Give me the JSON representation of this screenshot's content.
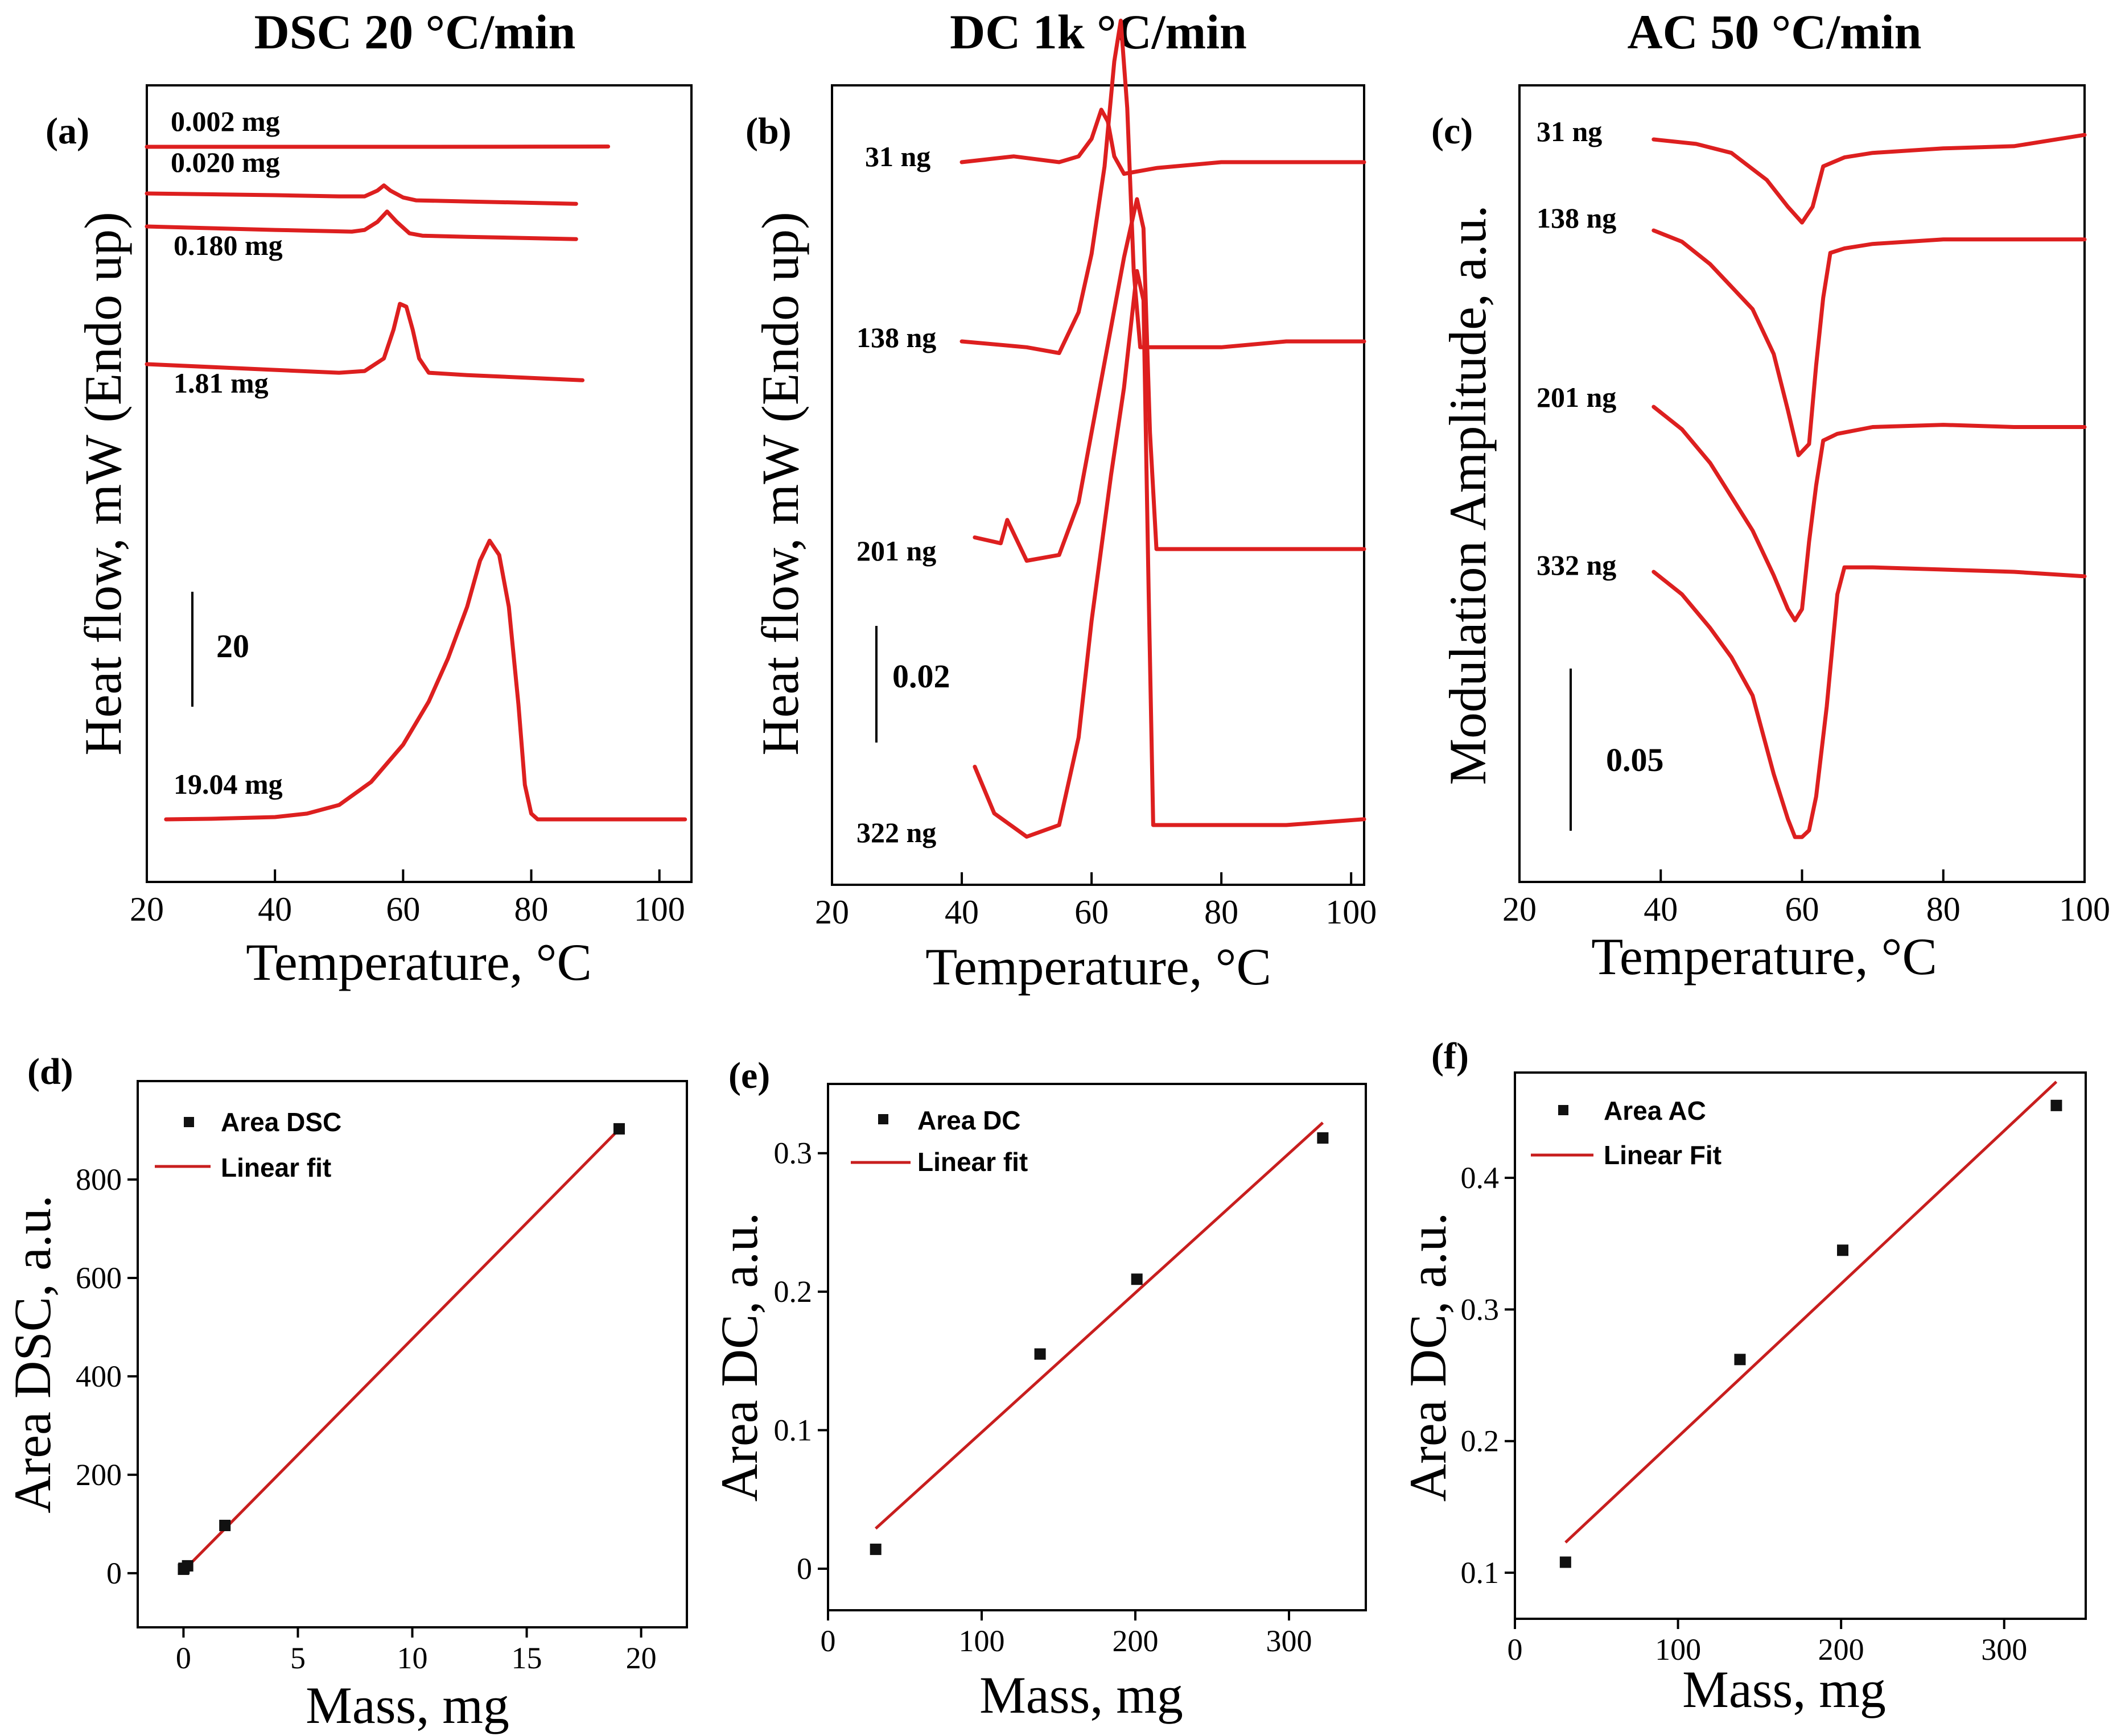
{
  "colors": {
    "trace": "#dd1f1f",
    "fit": "#c81e1e",
    "marker": "#111111"
  },
  "titles": {
    "a": "DSC 20 °C/min",
    "b": "DC 1k °C/min",
    "c": "AC 50 °C/min"
  },
  "chart_data": [
    {
      "id": "a",
      "type": "line",
      "panel_label": "(a)",
      "xlabel": "Temperature, °C",
      "ylabel": "Heat flow, mW (Endo up)",
      "xlim": [
        20,
        105
      ],
      "xticks": [
        20,
        40,
        60,
        80,
        100
      ],
      "scale_bar": "20",
      "series": [
        {
          "name": "0.002 mg",
          "x": [
            20,
            40,
            60,
            80,
            92
          ],
          "y": [
            0,
            0,
            0,
            0.02,
            0.05
          ]
        },
        {
          "name": "0.020 mg",
          "x": [
            20,
            40,
            50,
            54,
            56,
            57,
            58,
            60,
            62,
            70,
            87
          ],
          "y": [
            0,
            -0.3,
            -0.5,
            -0.5,
            0.5,
            1.4,
            0.5,
            -0.7,
            -1.2,
            -1.4,
            -1.8
          ]
        },
        {
          "name": "0.180 mg",
          "x": [
            20,
            40,
            52,
            54,
            56,
            57.5,
            59,
            61,
            63,
            70,
            87
          ],
          "y": [
            0,
            -0.6,
            -0.9,
            -0.6,
            0.8,
            2.6,
            0.8,
            -1.2,
            -1.6,
            -1.8,
            -2.2
          ]
        },
        {
          "name": "1.81 mg",
          "x": [
            20,
            40,
            50,
            54,
            57,
            58.5,
            59.5,
            60.5,
            61.5,
            62.5,
            64,
            70,
            80,
            88
          ],
          "y": [
            0,
            -1,
            -1.5,
            -1.2,
            1,
            6,
            10.5,
            10,
            6,
            1,
            -1.5,
            -1.9,
            -2.4,
            -2.8
          ]
        },
        {
          "name": "19.04 mg",
          "x": [
            23,
            30,
            40,
            45,
            50,
            55,
            60,
            64,
            67,
            70,
            72,
            73.5,
            75,
            76.5,
            78,
            79,
            80,
            81,
            90,
            104
          ],
          "y": [
            0,
            0.1,
            0.4,
            1,
            2.5,
            6.5,
            13,
            20.5,
            28,
            37,
            45,
            48.5,
            46,
            37,
            20,
            6,
            1,
            0,
            0,
            0
          ]
        }
      ]
    },
    {
      "id": "b",
      "type": "line",
      "panel_label": "(b)",
      "xlabel": "Temperature, °C",
      "ylabel": "Heat flow, mW (Endo up)",
      "xlim": [
        20,
        102
      ],
      "xticks": [
        20,
        40,
        60,
        80,
        100
      ],
      "scale_bar": "0.02",
      "series": [
        {
          "name": "31 ng",
          "x": [
            40,
            48,
            55,
            58,
            60,
            61.5,
            62.5,
            63.5,
            65,
            70,
            80,
            90,
            102
          ],
          "y": [
            0,
            0.001,
            0,
            0.001,
            0.004,
            0.009,
            0.007,
            0.001,
            -0.002,
            -0.001,
            0,
            0,
            0
          ]
        },
        {
          "name": "138 ng",
          "x": [
            40,
            50,
            55,
            58,
            60,
            62,
            63.5,
            64.5,
            65.5,
            66.5,
            67.5,
            70,
            80,
            90,
            102
          ],
          "y": [
            0,
            -0.001,
            -0.002,
            0.005,
            0.015,
            0.03,
            0.048,
            0.055,
            0.04,
            0.012,
            -0.001,
            -0.001,
            -0.001,
            0,
            0
          ]
        },
        {
          "name": "201 ng",
          "x": [
            42,
            46,
            47,
            50,
            55,
            58,
            60,
            63,
            65,
            67,
            68,
            69,
            70,
            72,
            80,
            90,
            102
          ],
          "y": [
            0.002,
            0.001,
            0.005,
            -0.002,
            -0.001,
            0.008,
            0.02,
            0.038,
            0.05,
            0.06,
            0.055,
            0.02,
            0,
            0,
            0,
            0,
            0
          ]
        },
        {
          "name": "322 ng",
          "x": [
            42,
            45,
            50,
            55,
            58,
            60,
            63,
            65,
            66,
            67,
            68,
            68.8,
            69.5,
            72,
            80,
            90,
            102
          ],
          "y": [
            0.01,
            0.002,
            -0.002,
            0,
            0.015,
            0.035,
            0.06,
            0.075,
            0.085,
            0.095,
            0.09,
            0.04,
            0,
            0,
            0,
            0,
            0.001
          ]
        }
      ]
    },
    {
      "id": "c",
      "type": "line",
      "panel_label": "(c)",
      "xlabel": "Temperature, °C",
      "ylabel": "Modulation Amplitude, a.u.",
      "xlim": [
        20,
        100
      ],
      "xticks": [
        20,
        40,
        60,
        80,
        100
      ],
      "scale_bar": "0.05",
      "series": [
        {
          "name": "31 ng",
          "x": [
            39,
            45,
            50,
            55,
            58,
            60,
            61.5,
            63,
            66,
            70,
            80,
            90,
            100
          ],
          "y": [
            0,
            -0.002,
            -0.006,
            -0.018,
            -0.03,
            -0.037,
            -0.03,
            -0.012,
            -0.008,
            -0.006,
            -0.004,
            -0.003,
            0.002
          ]
        },
        {
          "name": "138 ng",
          "x": [
            39,
            43,
            47,
            50,
            53,
            56,
            58,
            59.5,
            61,
            62,
            63,
            64,
            66,
            70,
            80,
            90,
            100
          ],
          "y": [
            0,
            -0.005,
            -0.015,
            -0.025,
            -0.035,
            -0.055,
            -0.08,
            -0.1,
            -0.095,
            -0.06,
            -0.03,
            -0.01,
            -0.008,
            -0.006,
            -0.004,
            -0.004,
            -0.004
          ]
        },
        {
          "name": "201 ng",
          "x": [
            39,
            43,
            47,
            50,
            53,
            56,
            58,
            59,
            60,
            61,
            62,
            63,
            65,
            70,
            80,
            90,
            100
          ],
          "y": [
            0,
            -0.01,
            -0.025,
            -0.04,
            -0.055,
            -0.075,
            -0.09,
            -0.095,
            -0.09,
            -0.06,
            -0.035,
            -0.015,
            -0.012,
            -0.009,
            -0.008,
            -0.009,
            -0.009
          ]
        },
        {
          "name": "332 ng",
          "x": [
            39,
            43,
            47,
            50,
            53,
            56,
            58,
            59,
            60,
            61,
            62,
            63.5,
            65,
            66,
            70,
            80,
            90,
            100
          ],
          "y": [
            0,
            -0.01,
            -0.025,
            -0.038,
            -0.055,
            -0.09,
            -0.11,
            -0.118,
            -0.118,
            -0.115,
            -0.1,
            -0.06,
            -0.01,
            0.002,
            0.002,
            0.001,
            0,
            -0.002
          ]
        }
      ]
    },
    {
      "id": "d",
      "type": "scatter",
      "panel_label": "(d)",
      "xlabel": "Mass, mg",
      "ylabel": "Area DSC, a.u.",
      "xlim": [
        -2,
        22
      ],
      "ylim": [
        -110,
        1000
      ],
      "xticks": [
        0,
        5,
        10,
        15,
        20
      ],
      "yticks": [
        0,
        200,
        400,
        600,
        800
      ],
      "legend": [
        "Area DSC",
        "Linear fit"
      ],
      "points": {
        "x": [
          0.002,
          0.02,
          0.18,
          1.81,
          19.04
        ],
        "y": [
          8,
          10,
          15,
          97,
          903
        ]
      },
      "fit": {
        "x": [
          0,
          19.1
        ],
        "y": [
          5,
          905
        ]
      }
    },
    {
      "id": "e",
      "type": "scatter",
      "panel_label": "(e)",
      "xlabel": "Mass, mg",
      "ylabel": "Area DC, a.u.",
      "xlim": [
        0,
        350
      ],
      "ylim": [
        -0.03,
        0.35
      ],
      "xticks": [
        0,
        100,
        200,
        300
      ],
      "yticks": [
        0,
        0.1,
        0.2,
        0.3
      ],
      "ytick_labels": [
        "0",
        "0.1",
        "0.2",
        "0.3"
      ],
      "legend": [
        "Area DC",
        "Linear fit"
      ],
      "points": {
        "x": [
          31,
          138,
          201,
          322
        ],
        "y": [
          0.014,
          0.155,
          0.209,
          0.311
        ]
      },
      "fit": {
        "x": [
          31,
          322
        ],
        "y": [
          0.029,
          0.322
        ]
      }
    },
    {
      "id": "f",
      "type": "scatter",
      "panel_label": "(f)",
      "xlabel": "Mass, mg",
      "ylabel": "Area DC, a.u.",
      "xlim": [
        0,
        350
      ],
      "ylim": [
        0.065,
        0.48
      ],
      "xticks": [
        0,
        100,
        200,
        300
      ],
      "yticks": [
        0.1,
        0.2,
        0.3,
        0.4
      ],
      "ytick_labels": [
        "0.1",
        "0.2",
        "0.3",
        "0.4"
      ],
      "legend": [
        "Area AC",
        "Linear Fit"
      ],
      "points": {
        "x": [
          31,
          138,
          201,
          332
        ],
        "y": [
          0.108,
          0.262,
          0.345,
          0.455
        ]
      },
      "fit": {
        "x": [
          31,
          332
        ],
        "y": [
          0.123,
          0.473
        ]
      }
    }
  ]
}
